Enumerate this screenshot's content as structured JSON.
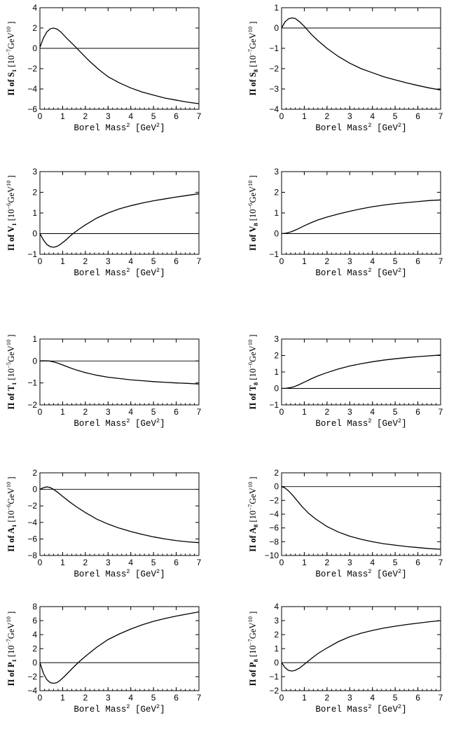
{
  "chart_data": [
    {
      "id": "S1",
      "type": "line",
      "title": "",
      "ylabel_main": "Π of S",
      "ylabel_sub": "1",
      "ylabel_units_prefix": "[10",
      "ylabel_units_exp": "−7",
      "ylabel_units_suffix": "GeV",
      "ylabel_units_suffix_exp": "10",
      "ylabel_units_close": " ]",
      "xlabel_main": "Borel Mass",
      "xlabel_sup": "2",
      "xlabel_units": "[GeV",
      "xlabel_units_sup": "2",
      "xlabel_close": "]",
      "xlim": [
        0,
        7
      ],
      "ylim": [
        -6,
        4
      ],
      "xticks": [
        0,
        1,
        2,
        3,
        4,
        5,
        6,
        7
      ],
      "yticks": [
        -6,
        -4,
        -2,
        0,
        2,
        4
      ],
      "x": [
        0,
        0.15,
        0.3,
        0.45,
        0.6,
        0.75,
        0.9,
        1.2,
        1.5,
        1.8,
        2.2,
        2.6,
        3,
        3.5,
        4,
        4.5,
        5,
        5.5,
        6,
        6.5,
        7
      ],
      "y": [
        0.1,
        1.0,
        1.6,
        1.92,
        2.0,
        1.9,
        1.65,
        0.95,
        0.3,
        -0.4,
        -1.3,
        -2.1,
        -2.8,
        -3.4,
        -3.9,
        -4.3,
        -4.6,
        -4.9,
        -5.1,
        -5.3,
        -5.45
      ]
    },
    {
      "id": "S8",
      "type": "line",
      "title": "",
      "ylabel_main": "Π of S",
      "ylabel_sub": "8",
      "ylabel_units_prefix": "[10",
      "ylabel_units_exp": "−7",
      "ylabel_units_suffix": "GeV",
      "ylabel_units_suffix_exp": "10",
      "ylabel_units_close": " ]",
      "xlabel_main": "Borel Mass",
      "xlabel_sup": "2",
      "xlabel_units": "[GeV",
      "xlabel_units_sup": "2",
      "xlabel_close": "]",
      "xlim": [
        0,
        7
      ],
      "ylim": [
        -4,
        1
      ],
      "xticks": [
        0,
        1,
        2,
        3,
        4,
        5,
        6,
        7
      ],
      "yticks": [
        -4,
        -3,
        -2,
        -1,
        0,
        1
      ],
      "x": [
        0,
        0.15,
        0.3,
        0.45,
        0.6,
        0.8,
        1.0,
        1.3,
        1.6,
        2,
        2.5,
        3,
        3.5,
        4,
        4.5,
        5,
        5.5,
        6,
        6.5,
        7
      ],
      "y": [
        0,
        0.3,
        0.45,
        0.5,
        0.47,
        0.3,
        0.08,
        -0.3,
        -0.62,
        -1.0,
        -1.4,
        -1.73,
        -2.0,
        -2.2,
        -2.4,
        -2.55,
        -2.7,
        -2.83,
        -2.95,
        -3.05
      ]
    },
    {
      "id": "V1",
      "type": "line",
      "title": "",
      "ylabel_main": "Π of V",
      "ylabel_sub": "1",
      "ylabel_units_prefix": "[10",
      "ylabel_units_exp": "−6",
      "ylabel_units_suffix": "GeV",
      "ylabel_units_suffix_exp": "10",
      "ylabel_units_close": " ]",
      "xlabel_main": "Borel Mass",
      "xlabel_sup": "2",
      "xlabel_units": "[GeV",
      "xlabel_units_sup": "2",
      "xlabel_close": "]",
      "xlim": [
        0,
        7
      ],
      "ylim": [
        -1,
        3
      ],
      "xticks": [
        0,
        1,
        2,
        3,
        4,
        5,
        6,
        7
      ],
      "yticks": [
        -1,
        0,
        1,
        2,
        3
      ],
      "x": [
        0,
        0.15,
        0.3,
        0.45,
        0.6,
        0.75,
        0.9,
        1.1,
        1.4,
        1.7,
        2,
        2.5,
        3,
        3.5,
        4,
        4.5,
        5,
        5.5,
        6,
        6.5,
        7
      ],
      "y": [
        0,
        -0.3,
        -0.52,
        -0.63,
        -0.66,
        -0.62,
        -0.52,
        -0.35,
        -0.05,
        0.2,
        0.42,
        0.75,
        1.0,
        1.2,
        1.35,
        1.48,
        1.59,
        1.68,
        1.77,
        1.85,
        1.93
      ]
    },
    {
      "id": "V8",
      "type": "line",
      "title": "",
      "ylabel_main": "Π of V",
      "ylabel_sub": "8",
      "ylabel_units_prefix": "[10",
      "ylabel_units_exp": "−6",
      "ylabel_units_suffix": "GeV",
      "ylabel_units_suffix_exp": "10",
      "ylabel_units_close": " ]",
      "xlabel_main": "Borel Mass",
      "xlabel_sup": "2",
      "xlabel_units": "[GeV",
      "xlabel_units_sup": "2",
      "xlabel_close": "]",
      "xlim": [
        0,
        7
      ],
      "ylim": [
        -1,
        3
      ],
      "xticks": [
        0,
        1,
        2,
        3,
        4,
        5,
        6,
        7
      ],
      "yticks": [
        -1,
        0,
        1,
        2,
        3
      ],
      "x": [
        0,
        0.2,
        0.4,
        0.6,
        0.8,
        1.0,
        1.3,
        1.6,
        2,
        2.5,
        3,
        3.5,
        4,
        4.5,
        5,
        5.5,
        6,
        6.5,
        7
      ],
      "y": [
        0,
        0.02,
        0.08,
        0.17,
        0.27,
        0.38,
        0.53,
        0.66,
        0.8,
        0.95,
        1.08,
        1.2,
        1.3,
        1.38,
        1.45,
        1.5,
        1.55,
        1.6,
        1.63
      ]
    },
    {
      "id": "T1",
      "type": "line",
      "title": "",
      "ylabel_main": "Π of T",
      "ylabel_sub": "1",
      "ylabel_units_prefix": "[10",
      "ylabel_units_exp": "−5",
      "ylabel_units_suffix": "GeV",
      "ylabel_units_suffix_exp": "10",
      "ylabel_units_close": " ]",
      "xlabel_main": "Borel Mass",
      "xlabel_sup": "2",
      "xlabel_units": "[GeV",
      "xlabel_units_sup": "2",
      "xlabel_close": "]",
      "xlim": [
        0,
        7
      ],
      "ylim": [
        -2,
        1
      ],
      "xticks": [
        0,
        1,
        2,
        3,
        4,
        5,
        6,
        7
      ],
      "yticks": [
        -2,
        -1,
        0,
        1
      ],
      "x": [
        0,
        0.2,
        0.4,
        0.6,
        0.8,
        1.0,
        1.3,
        1.6,
        2,
        2.5,
        3,
        3.5,
        4,
        4.5,
        5,
        5.5,
        6,
        6.5,
        7
      ],
      "y": [
        0,
        0.01,
        0,
        -0.04,
        -0.1,
        -0.18,
        -0.3,
        -0.41,
        -0.53,
        -0.65,
        -0.74,
        -0.8,
        -0.86,
        -0.9,
        -0.94,
        -0.97,
        -1.0,
        -1.02,
        -1.05
      ]
    },
    {
      "id": "T8",
      "type": "line",
      "title": "",
      "ylabel_main": "Π of T",
      "ylabel_sub": "8",
      "ylabel_units_prefix": "[10",
      "ylabel_units_exp": "−6",
      "ylabel_units_suffix": "GeV",
      "ylabel_units_suffix_exp": "10",
      "ylabel_units_close": " ]",
      "xlabel_main": "Borel Mass",
      "xlabel_sup": "2",
      "xlabel_units": "[GeV",
      "xlabel_units_sup": "2",
      "xlabel_close": "]",
      "xlim": [
        0,
        7
      ],
      "ylim": [
        -1,
        3
      ],
      "xticks": [
        0,
        1,
        2,
        3,
        4,
        5,
        6,
        7
      ],
      "yticks": [
        -1,
        0,
        1,
        2,
        3
      ],
      "x": [
        0,
        0.2,
        0.4,
        0.6,
        0.8,
        1.0,
        1.3,
        1.6,
        2,
        2.5,
        3,
        3.5,
        4,
        4.5,
        5,
        5.5,
        6,
        6.5,
        7
      ],
      "y": [
        0,
        0.01,
        0.05,
        0.13,
        0.25,
        0.38,
        0.58,
        0.76,
        0.96,
        1.18,
        1.36,
        1.5,
        1.62,
        1.72,
        1.8,
        1.87,
        1.93,
        1.98,
        2.03
      ]
    },
    {
      "id": "A1",
      "type": "line",
      "title": "",
      "ylabel_main": "Π of A",
      "ylabel_sub": "1",
      "ylabel_units_prefix": "[10",
      "ylabel_units_exp": "−6",
      "ylabel_units_suffix": "GeV",
      "ylabel_units_suffix_exp": "10",
      "ylabel_units_close": " ]",
      "xlabel_main": "Borel Mass",
      "xlabel_sup": "2",
      "xlabel_units": "[GeV",
      "xlabel_units_sup": "2",
      "xlabel_close": "]",
      "xlim": [
        0,
        7
      ],
      "ylim": [
        -8,
        2
      ],
      "xticks": [
        0,
        1,
        2,
        3,
        4,
        5,
        6,
        7
      ],
      "yticks": [
        -8,
        -6,
        -4,
        -2,
        0,
        2
      ],
      "x": [
        0,
        0.15,
        0.3,
        0.45,
        0.6,
        0.8,
        1.0,
        1.3,
        1.6,
        2,
        2.5,
        3,
        3.5,
        4,
        4.5,
        5,
        5.5,
        6,
        6.5,
        7
      ],
      "y": [
        0,
        0.2,
        0.3,
        0.22,
        0.0,
        -0.4,
        -0.85,
        -1.5,
        -2.1,
        -2.8,
        -3.6,
        -4.2,
        -4.7,
        -5.1,
        -5.45,
        -5.75,
        -6.0,
        -6.2,
        -6.35,
        -6.45
      ]
    },
    {
      "id": "A8",
      "type": "line",
      "title": "",
      "ylabel_main": "Π of A",
      "ylabel_sub": "8",
      "ylabel_units_prefix": "[10",
      "ylabel_units_exp": "−7",
      "ylabel_units_suffix": "GeV",
      "ylabel_units_suffix_exp": "10",
      "ylabel_units_close": " ]",
      "xlabel_main": "Borel Mass",
      "xlabel_sup": "2",
      "xlabel_units": "[GeV",
      "xlabel_units_sup": "2",
      "xlabel_close": "]",
      "xlim": [
        0,
        7
      ],
      "ylim": [
        -10,
        2
      ],
      "xticks": [
        0,
        1,
        2,
        3,
        4,
        5,
        6,
        7
      ],
      "yticks": [
        -10,
        -8,
        -6,
        -4,
        -2,
        0,
        2
      ],
      "x": [
        0,
        0.15,
        0.3,
        0.5,
        0.7,
        0.9,
        1.2,
        1.5,
        2,
        2.5,
        3,
        3.5,
        4,
        4.5,
        5,
        5.5,
        6,
        6.5,
        7
      ],
      "y": [
        0,
        -0.2,
        -0.6,
        -1.3,
        -2.1,
        -2.9,
        -3.9,
        -4.7,
        -5.8,
        -6.6,
        -7.2,
        -7.65,
        -8.0,
        -8.3,
        -8.5,
        -8.7,
        -8.85,
        -9.0,
        -9.1
      ]
    },
    {
      "id": "P1",
      "type": "line",
      "title": "",
      "ylabel_main": "Π of P",
      "ylabel_sub": "1",
      "ylabel_units_prefix": "[10",
      "ylabel_units_exp": "−7",
      "ylabel_units_suffix": "GeV",
      "ylabel_units_suffix_exp": "10",
      "ylabel_units_close": " ]",
      "xlabel_main": "Borel Mass",
      "xlabel_sup": "2",
      "xlabel_units": "[GeV",
      "xlabel_units_sup": "2",
      "xlabel_close": "]",
      "xlim": [
        0,
        7
      ],
      "ylim": [
        -4,
        8
      ],
      "xticks": [
        0,
        1,
        2,
        3,
        4,
        5,
        6,
        7
      ],
      "yticks": [
        -4,
        -2,
        0,
        2,
        4,
        6,
        8
      ],
      "x": [
        0,
        0.15,
        0.3,
        0.45,
        0.6,
        0.75,
        0.9,
        1.1,
        1.4,
        1.7,
        2,
        2.5,
        3,
        3.5,
        4,
        4.5,
        5,
        5.5,
        6,
        6.5,
        7
      ],
      "y": [
        0,
        -1.5,
        -2.4,
        -2.85,
        -2.95,
        -2.85,
        -2.5,
        -1.9,
        -0.9,
        0.05,
        0.9,
        2.2,
        3.3,
        4.1,
        4.8,
        5.4,
        5.9,
        6.3,
        6.65,
        6.95,
        7.25
      ]
    },
    {
      "id": "P8",
      "type": "line",
      "title": "",
      "ylabel_main": "Π of P",
      "ylabel_sub": "8",
      "ylabel_units_prefix": "[10",
      "ylabel_units_exp": "−7",
      "ylabel_units_suffix": "GeV",
      "ylabel_units_suffix_exp": "10",
      "ylabel_units_close": " ]",
      "xlabel_main": "Borel Mass",
      "xlabel_sup": "2",
      "xlabel_units": "[GeV",
      "xlabel_units_sup": "2",
      "xlabel_close": "]",
      "xlim": [
        0,
        7
      ],
      "ylim": [
        -2,
        4
      ],
      "xticks": [
        0,
        1,
        2,
        3,
        4,
        5,
        6,
        7
      ],
      "yticks": [
        -2,
        -1,
        0,
        1,
        2,
        3,
        4
      ],
      "x": [
        0,
        0.15,
        0.3,
        0.45,
        0.6,
        0.8,
        1.0,
        1.3,
        1.6,
        2,
        2.5,
        3,
        3.5,
        4,
        4.5,
        5,
        5.5,
        6,
        6.5,
        7
      ],
      "y": [
        0,
        -0.35,
        -0.55,
        -0.6,
        -0.55,
        -0.38,
        -0.12,
        0.28,
        0.65,
        1.05,
        1.5,
        1.85,
        2.1,
        2.3,
        2.47,
        2.6,
        2.72,
        2.82,
        2.92,
        3.0
      ]
    }
  ]
}
